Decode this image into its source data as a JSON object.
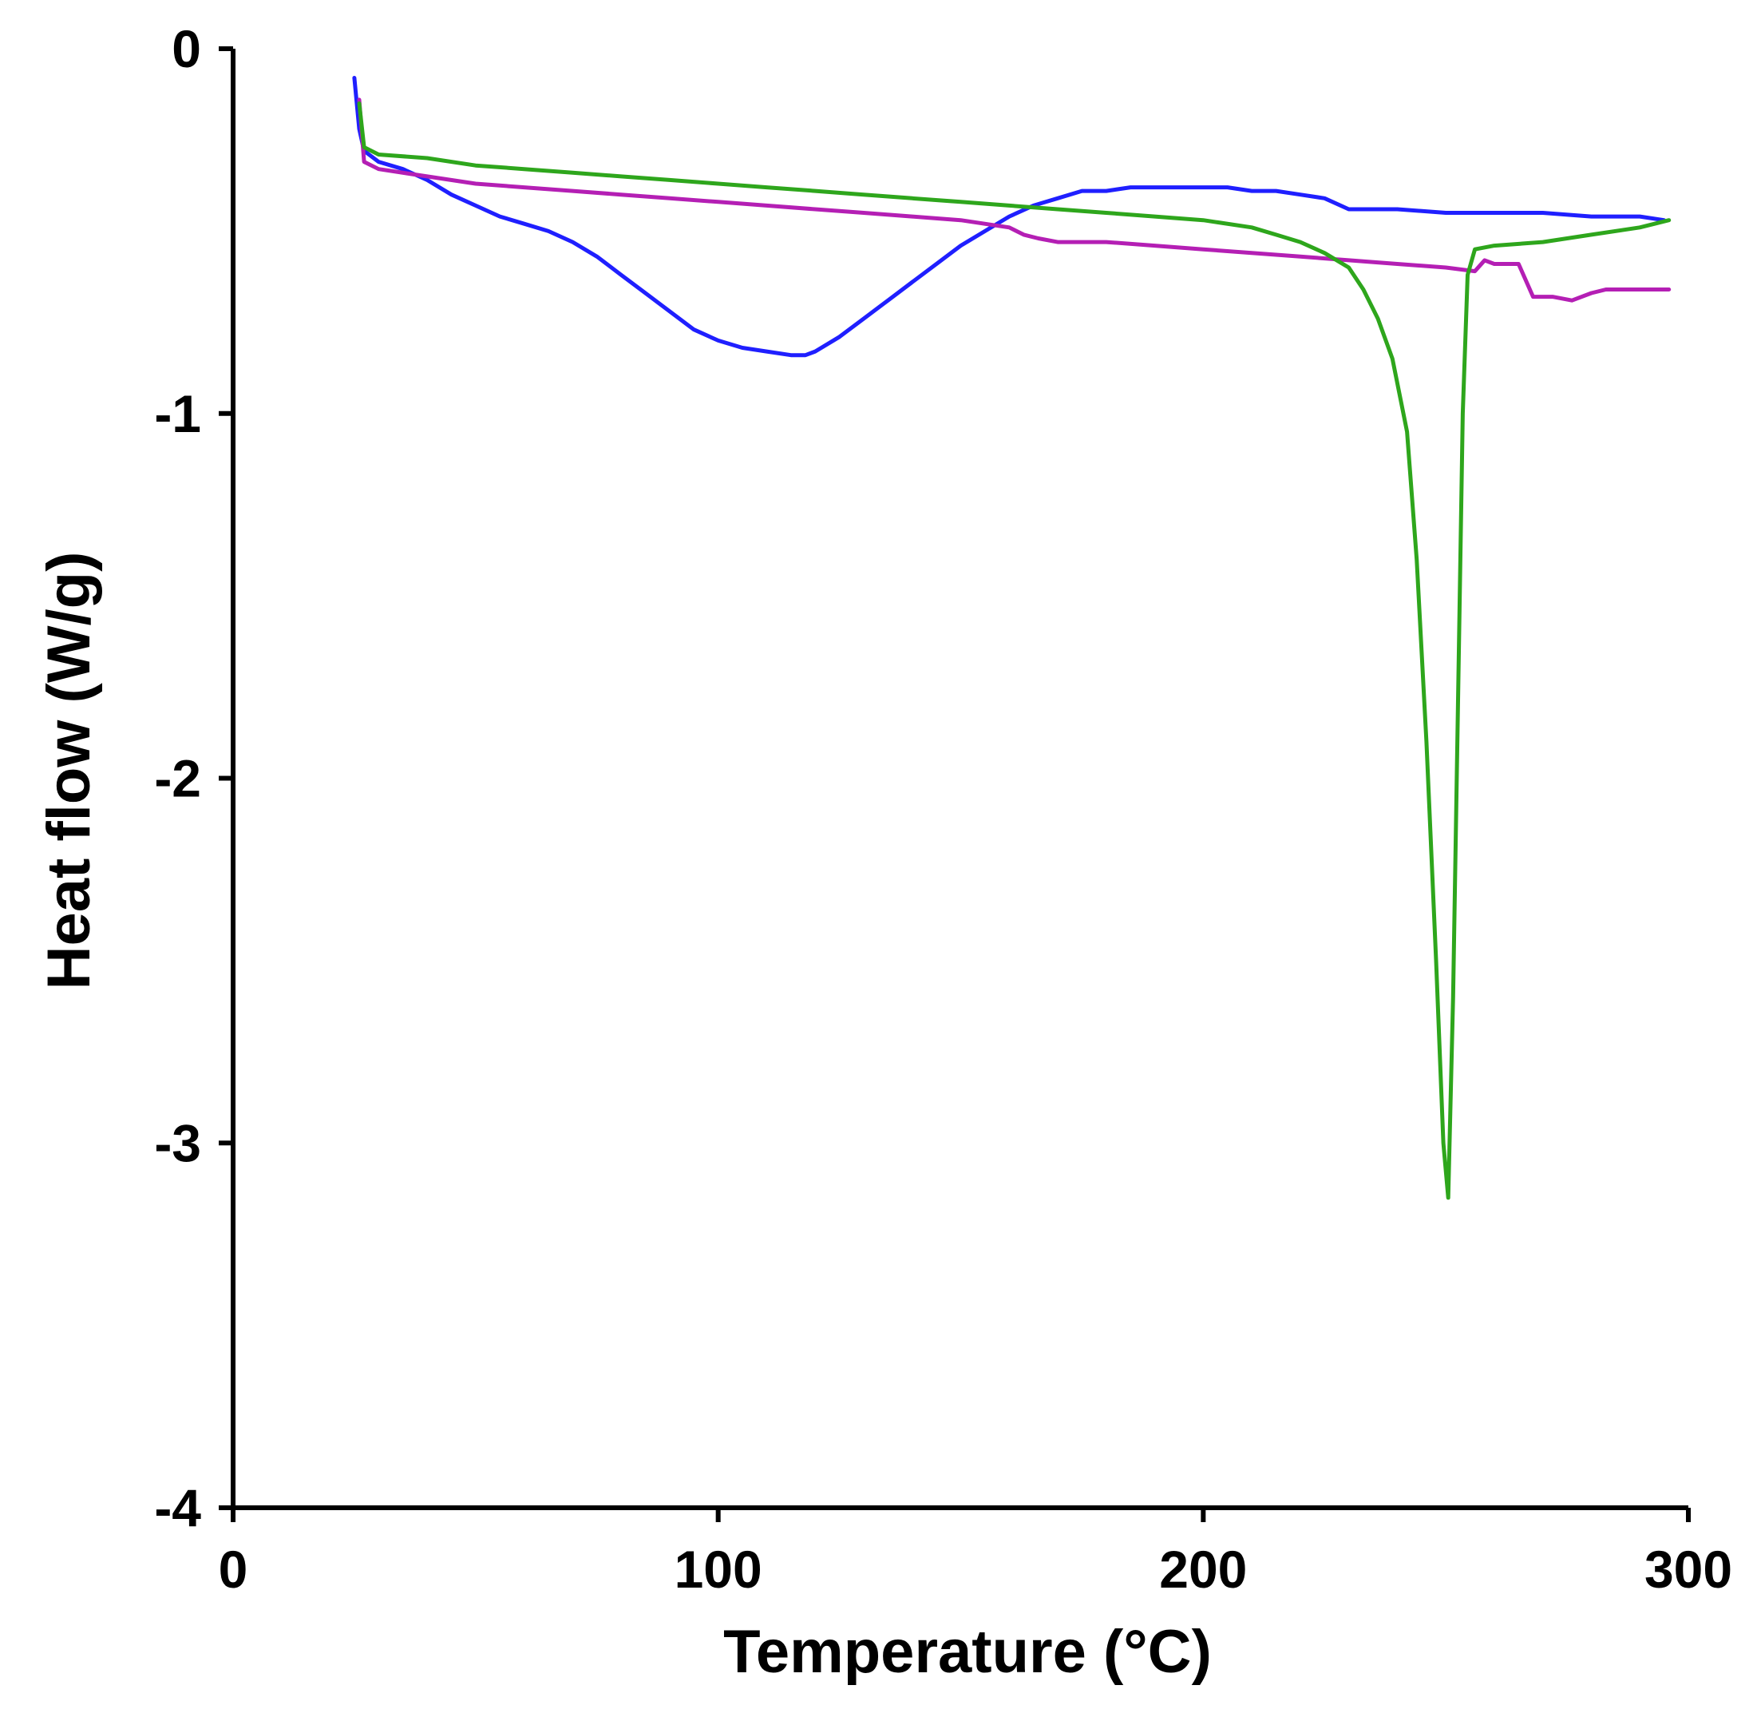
{
  "chart_data": {
    "type": "line",
    "title": "",
    "xlabel": "Temperature (°C)",
    "ylabel": "Heat flow (W/g)",
    "xlim": [
      0,
      300
    ],
    "ylim": [
      -4,
      0
    ],
    "x_ticks": [
      0,
      100,
      200,
      300
    ],
    "y_ticks": [
      0,
      -1,
      -2,
      -3,
      -4
    ],
    "x_tick_labels": [
      "0",
      "100",
      "200",
      "300"
    ],
    "y_tick_labels": [
      "0",
      "-1",
      "-2",
      "-3",
      "-4"
    ],
    "grid": false,
    "series": [
      {
        "name": "blue",
        "color": "#1f1fff",
        "points": [
          [
            25,
            -0.08
          ],
          [
            26,
            -0.22
          ],
          [
            27,
            -0.28
          ],
          [
            30,
            -0.31
          ],
          [
            35,
            -0.33
          ],
          [
            40,
            -0.36
          ],
          [
            45,
            -0.4
          ],
          [
            50,
            -0.43
          ],
          [
            55,
            -0.46
          ],
          [
            60,
            -0.48
          ],
          [
            65,
            -0.5
          ],
          [
            70,
            -0.53
          ],
          [
            75,
            -0.57
          ],
          [
            80,
            -0.62
          ],
          [
            85,
            -0.67
          ],
          [
            90,
            -0.72
          ],
          [
            95,
            -0.77
          ],
          [
            100,
            -0.8
          ],
          [
            105,
            -0.82
          ],
          [
            110,
            -0.83
          ],
          [
            115,
            -0.84
          ],
          [
            118,
            -0.84
          ],
          [
            120,
            -0.83
          ],
          [
            125,
            -0.79
          ],
          [
            130,
            -0.74
          ],
          [
            135,
            -0.69
          ],
          [
            140,
            -0.64
          ],
          [
            145,
            -0.59
          ],
          [
            150,
            -0.54
          ],
          [
            155,
            -0.5
          ],
          [
            160,
            -0.46
          ],
          [
            165,
            -0.43
          ],
          [
            170,
            -0.41
          ],
          [
            175,
            -0.39
          ],
          [
            180,
            -0.39
          ],
          [
            185,
            -0.38
          ],
          [
            190,
            -0.38
          ],
          [
            195,
            -0.38
          ],
          [
            200,
            -0.38
          ],
          [
            205,
            -0.38
          ],
          [
            210,
            -0.39
          ],
          [
            215,
            -0.39
          ],
          [
            220,
            -0.4
          ],
          [
            225,
            -0.41
          ],
          [
            230,
            -0.44
          ],
          [
            235,
            -0.44
          ],
          [
            240,
            -0.44
          ],
          [
            250,
            -0.45
          ],
          [
            260,
            -0.45
          ],
          [
            270,
            -0.45
          ],
          [
            280,
            -0.46
          ],
          [
            290,
            -0.46
          ],
          [
            295,
            -0.47
          ]
        ]
      },
      {
        "name": "magenta",
        "color": "#b41fb4",
        "points": [
          [
            26,
            -0.14
          ],
          [
            27,
            -0.31
          ],
          [
            30,
            -0.33
          ],
          [
            40,
            -0.35
          ],
          [
            50,
            -0.37
          ],
          [
            60,
            -0.38
          ],
          [
            70,
            -0.39
          ],
          [
            80,
            -0.4
          ],
          [
            90,
            -0.41
          ],
          [
            100,
            -0.42
          ],
          [
            110,
            -0.43
          ],
          [
            120,
            -0.44
          ],
          [
            130,
            -0.45
          ],
          [
            140,
            -0.46
          ],
          [
            150,
            -0.47
          ],
          [
            160,
            -0.49
          ],
          [
            163,
            -0.51
          ],
          [
            166,
            -0.52
          ],
          [
            170,
            -0.53
          ],
          [
            180,
            -0.53
          ],
          [
            190,
            -0.54
          ],
          [
            200,
            -0.55
          ],
          [
            210,
            -0.56
          ],
          [
            220,
            -0.57
          ],
          [
            230,
            -0.58
          ],
          [
            240,
            -0.59
          ],
          [
            250,
            -0.6
          ],
          [
            256,
            -0.61
          ],
          [
            258,
            -0.58
          ],
          [
            260,
            -0.59
          ],
          [
            265,
            -0.59
          ],
          [
            268,
            -0.68
          ],
          [
            272,
            -0.68
          ],
          [
            276,
            -0.69
          ],
          [
            280,
            -0.67
          ],
          [
            283,
            -0.66
          ],
          [
            290,
            -0.66
          ],
          [
            296,
            -0.66
          ]
        ]
      },
      {
        "name": "green",
        "color": "#2ea61c",
        "points": [
          [
            26,
            -0.15
          ],
          [
            27,
            -0.27
          ],
          [
            30,
            -0.29
          ],
          [
            40,
            -0.3
          ],
          [
            50,
            -0.32
          ],
          [
            60,
            -0.33
          ],
          [
            70,
            -0.34
          ],
          [
            80,
            -0.35
          ],
          [
            90,
            -0.36
          ],
          [
            100,
            -0.37
          ],
          [
            110,
            -0.38
          ],
          [
            120,
            -0.39
          ],
          [
            130,
            -0.4
          ],
          [
            140,
            -0.41
          ],
          [
            150,
            -0.42
          ],
          [
            160,
            -0.43
          ],
          [
            170,
            -0.44
          ],
          [
            180,
            -0.45
          ],
          [
            190,
            -0.46
          ],
          [
            200,
            -0.47
          ],
          [
            210,
            -0.49
          ],
          [
            215,
            -0.51
          ],
          [
            220,
            -0.53
          ],
          [
            225,
            -0.56
          ],
          [
            230,
            -0.6
          ],
          [
            233,
            -0.66
          ],
          [
            236,
            -0.74
          ],
          [
            239,
            -0.85
          ],
          [
            242,
            -1.05
          ],
          [
            244,
            -1.4
          ],
          [
            246,
            -1.9
          ],
          [
            248,
            -2.5
          ],
          [
            249.5,
            -3.0
          ],
          [
            250.5,
            -3.15
          ],
          [
            251.5,
            -2.6
          ],
          [
            252.5,
            -1.8
          ],
          [
            253.5,
            -1.0
          ],
          [
            254.5,
            -0.62
          ],
          [
            256,
            -0.55
          ],
          [
            260,
            -0.54
          ],
          [
            270,
            -0.53
          ],
          [
            280,
            -0.51
          ],
          [
            290,
            -0.49
          ],
          [
            296,
            -0.47
          ]
        ]
      }
    ]
  }
}
